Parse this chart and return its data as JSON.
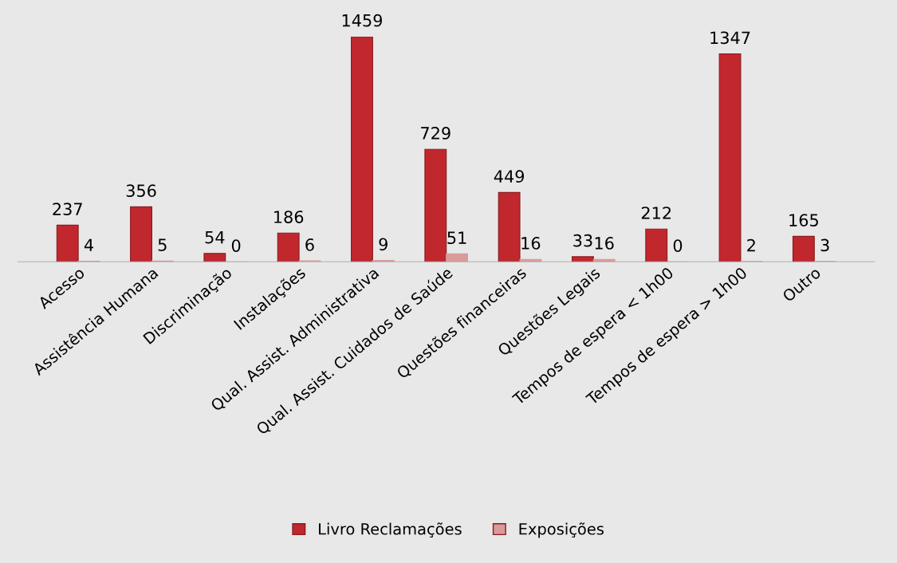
{
  "chart_data": {
    "type": "bar",
    "categories": [
      "Acesso",
      "Assistência Humana",
      "Discriminação",
      "Instalações",
      "Qual. Assist. Administrativa",
      "Qual. Assist. Cuidados de Saúde",
      "Questões financeiras",
      "Questões Legais",
      "Tempos de espera < 1h00",
      "Tempos de espera > 1h00",
      "Outro"
    ],
    "series": [
      {
        "name": "Livro Reclamações",
        "color": "#c0282d",
        "values": [
          237,
          356,
          54,
          186,
          1459,
          729,
          449,
          33,
          212,
          1347,
          165
        ]
      },
      {
        "name": "Exposições",
        "color": "#d99a9a",
        "values": [
          4,
          5,
          0,
          6,
          9,
          51,
          16,
          16,
          0,
          2,
          3
        ]
      }
    ],
    "data_labels": true,
    "legend": "bottom",
    "grid": false
  }
}
